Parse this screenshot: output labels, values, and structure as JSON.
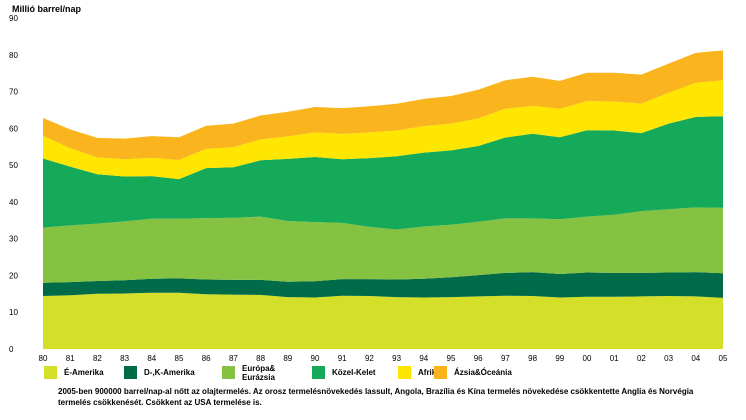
{
  "chart_data": {
    "type": "area",
    "stacked": true,
    "ylabel": "Millió barrel/nap",
    "xlabel": "",
    "ylim": [
      0,
      90
    ],
    "yticks": [
      0,
      10,
      20,
      30,
      40,
      50,
      60,
      70,
      80,
      90
    ],
    "grid": false,
    "legend_position": "bottom",
    "categories": [
      "80",
      "81",
      "82",
      "83",
      "84",
      "85",
      "86",
      "87",
      "88",
      "89",
      "90",
      "91",
      "92",
      "93",
      "94",
      "95",
      "96",
      "97",
      "98",
      "99",
      "00",
      "01",
      "02",
      "03",
      "04",
      "05"
    ],
    "series": [
      {
        "name": "É-Amerika",
        "color": "#d4df2a",
        "values": [
          14.4,
          14.6,
          15.0,
          15.1,
          15.3,
          15.3,
          14.9,
          14.8,
          14.7,
          14.1,
          14.0,
          14.5,
          14.4,
          14.1,
          14.0,
          14.1,
          14.3,
          14.5,
          14.4,
          14.0,
          14.2,
          14.2,
          14.3,
          14.4,
          14.3,
          13.9
        ]
      },
      {
        "name": "D-,K-Amerika",
        "color": "#006b48",
        "values": [
          3.6,
          3.6,
          3.5,
          3.6,
          3.8,
          3.9,
          4.0,
          4.0,
          4.1,
          4.2,
          4.4,
          4.5,
          4.6,
          4.8,
          5.1,
          5.4,
          5.8,
          6.2,
          6.5,
          6.4,
          6.6,
          6.5,
          6.4,
          6.4,
          6.6,
          6.7
        ]
      },
      {
        "name": "Európa& Eurázsia",
        "color": "#85c241",
        "values": [
          15.0,
          15.4,
          15.6,
          16.0,
          16.3,
          16.2,
          16.7,
          16.9,
          17.2,
          16.5,
          16.1,
          15.3,
          14.2,
          13.6,
          14.2,
          14.3,
          14.5,
          14.8,
          14.6,
          14.9,
          15.2,
          15.8,
          16.8,
          17.2,
          17.6,
          17.8
        ]
      },
      {
        "name": "Közel-Kelet",
        "color": "#14aa5a",
        "values": [
          18.8,
          16.0,
          13.4,
          12.2,
          11.6,
          10.8,
          13.6,
          13.7,
          15.3,
          16.9,
          17.7,
          17.3,
          18.7,
          19.9,
          20.1,
          20.2,
          20.6,
          22.0,
          23.0,
          22.3,
          23.5,
          22.9,
          21.2,
          23.3,
          24.6,
          24.9
        ]
      },
      {
        "name": "Afrika",
        "color": "#ffe600",
        "values": [
          6.2,
          5.0,
          4.6,
          4.7,
          5.0,
          5.2,
          5.2,
          5.5,
          5.7,
          6.1,
          6.7,
          6.9,
          7.0,
          7.0,
          7.2,
          7.3,
          7.5,
          7.8,
          7.6,
          7.7,
          7.9,
          7.9,
          8.0,
          8.4,
          9.3,
          9.8
        ]
      },
      {
        "name": "Ázsia&Óceánia",
        "color": "#fab41e",
        "values": [
          4.8,
          5.1,
          5.3,
          5.6,
          5.9,
          6.2,
          6.3,
          6.4,
          6.5,
          6.7,
          6.9,
          7.0,
          7.1,
          7.3,
          7.4,
          7.5,
          7.8,
          7.8,
          7.9,
          7.6,
          7.7,
          7.8,
          7.9,
          7.9,
          8.1,
          8.1
        ]
      }
    ]
  },
  "caption": "2005-ben 900000 barrel/nap-al nőtt az olajtermelés. Az orosz termelésnövekedés lassult, Angola, Brazília és Kína termelés növekedése csökkentette Anglia és Norvégia termelés csökkenését. Csökkent az USA termelése is.",
  "legend": [
    {
      "label_lines": [
        "É-Amerika"
      ],
      "color": "#d4df2a"
    },
    {
      "label_lines": [
        "D-,K-Amerika"
      ],
      "color": "#006b48"
    },
    {
      "label_lines": [
        "Európa&",
        "Eurázsia"
      ],
      "color": "#85c241"
    },
    {
      "label_lines": [
        "Közel-Kelet"
      ],
      "color": "#14aa5a"
    },
    {
      "label_lines": [
        "Afrika"
      ],
      "color": "#ffe600"
    },
    {
      "label_lines": [
        "Ázsia&Óceánia"
      ],
      "color": "#fab41e"
    }
  ]
}
